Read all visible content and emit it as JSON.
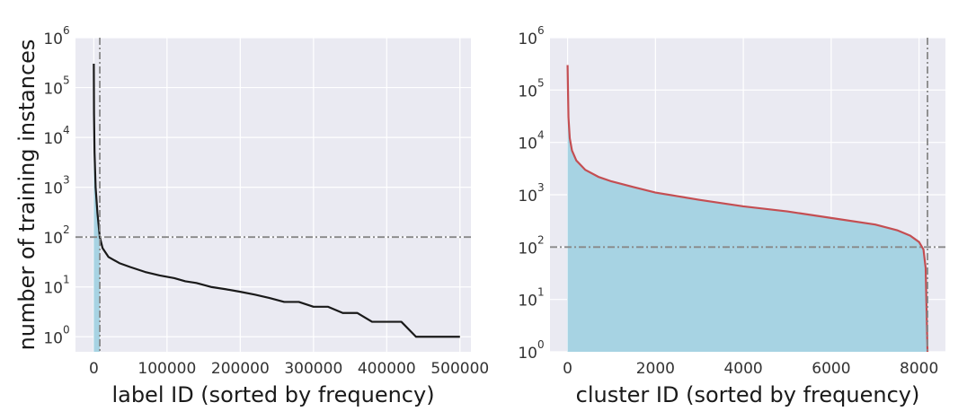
{
  "chart_data": [
    {
      "type": "line",
      "xlabel": "label ID (sorted by frequency)",
      "ylabel": "number of training instances",
      "yscale": "log",
      "xlim": [
        -25000,
        515000
      ],
      "ylim": [
        0.5,
        1000000
      ],
      "xticks": [
        0,
        100000,
        200000,
        300000,
        400000,
        500000
      ],
      "yticks": [
        1,
        10,
        100,
        1000,
        10000,
        100000,
        1000000
      ],
      "ytick_labels": [
        {
          "base": "10",
          "exp": "0"
        },
        {
          "base": "10",
          "exp": "1"
        },
        {
          "base": "10",
          "exp": "2"
        },
        {
          "base": "10",
          "exp": "3"
        },
        {
          "base": "10",
          "exp": "4"
        },
        {
          "base": "10",
          "exp": "5"
        },
        {
          "base": "10",
          "exp": "6"
        }
      ],
      "grid": true,
      "line_color": "#1a1a1a",
      "fill_color": "#a7d3e3",
      "fill_until_x": 8200,
      "vline_x": 8200,
      "hline_y": 100,
      "reference_line_color": "#888888",
      "background_color": "#eaeaf2",
      "x": [
        0,
        300,
        1000,
        2500,
        5000,
        8200,
        12000,
        20000,
        35000,
        50000,
        70000,
        90000,
        110000,
        125000,
        140000,
        160000,
        180000,
        200000,
        220000,
        240000,
        260000,
        280000,
        300000,
        320000,
        340000,
        360000,
        380000,
        400000,
        420000,
        440000,
        460000,
        480000,
        500000
      ],
      "y": [
        300000,
        30000,
        5000,
        1000,
        300,
        100,
        60,
        40,
        30,
        25,
        20,
        17,
        15,
        13,
        12,
        10,
        9,
        8,
        7,
        6,
        5,
        5,
        4,
        4,
        3,
        3,
        2,
        2,
        2,
        1,
        1,
        1,
        1
      ]
    },
    {
      "type": "line",
      "xlabel": "cluster ID (sorted by frequency)",
      "ylabel": "",
      "yscale": "log",
      "xlim": [
        -400,
        8600
      ],
      "ylim": [
        1,
        1000000
      ],
      "xticks": [
        0,
        2000,
        4000,
        6000,
        8000
      ],
      "yticks": [
        1,
        10,
        100,
        1000,
        10000,
        100000,
        1000000
      ],
      "ytick_labels": [
        {
          "base": "10",
          "exp": "0"
        },
        {
          "base": "10",
          "exp": "1"
        },
        {
          "base": "10",
          "exp": "2"
        },
        {
          "base": "10",
          "exp": "3"
        },
        {
          "base": "10",
          "exp": "4"
        },
        {
          "base": "10",
          "exp": "5"
        },
        {
          "base": "10",
          "exp": "6"
        }
      ],
      "grid": true,
      "line_color": "#c44e52",
      "fill_color": "#a7d3e3",
      "vline_x": 8192,
      "hline_y": 100,
      "reference_line_color": "#888888",
      "background_color": "#eaeaf2",
      "x": [
        0,
        20,
        50,
        100,
        200,
        400,
        700,
        1000,
        1500,
        2000,
        3000,
        4000,
        5000,
        6000,
        7000,
        7500,
        7800,
        8000,
        8100,
        8150,
        8192
      ],
      "y": [
        300000,
        30000,
        12000,
        7000,
        4500,
        3000,
        2200,
        1800,
        1400,
        1100,
        800,
        600,
        480,
        360,
        270,
        210,
        165,
        125,
        90,
        40,
        1
      ]
    }
  ]
}
